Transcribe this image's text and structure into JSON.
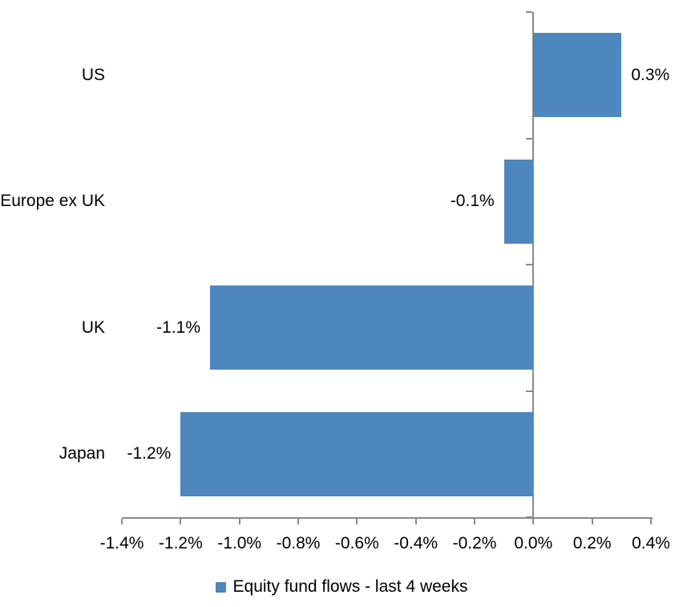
{
  "chart_data": {
    "type": "bar",
    "orientation": "horizontal",
    "title": "",
    "xlabel": "",
    "ylabel": "",
    "categories": [
      "US",
      "Europe ex UK",
      "UK",
      "Japan"
    ],
    "series": [
      {
        "name": "Equity fund flows - last 4 weeks",
        "values": [
          0.3,
          -0.1,
          -1.1,
          -1.2
        ],
        "data_labels": [
          "0.3%",
          "-0.1%",
          "-1.1%",
          "-1.2%"
        ]
      }
    ],
    "value_unit": "%",
    "xlim": [
      -1.4,
      0.4
    ],
    "x_ticks": [
      {
        "value": -1.4,
        "label": "-1.4%"
      },
      {
        "value": -1.2,
        "label": "-1.2%"
      },
      {
        "value": -1.0,
        "label": "-1.0%"
      },
      {
        "value": -0.8,
        "label": "-0.8%"
      },
      {
        "value": -0.6,
        "label": "-0.6%"
      },
      {
        "value": -0.4,
        "label": "-0.4%"
      },
      {
        "value": -0.2,
        "label": "-0.2%"
      },
      {
        "value": 0.0,
        "label": "0.0%"
      },
      {
        "value": 0.2,
        "label": "0.2%"
      },
      {
        "value": 0.4,
        "label": "0.4%"
      }
    ],
    "grid": false,
    "legend": {
      "position": "bottom",
      "entries": [
        "Equity fund flows - last 4 weeks"
      ]
    },
    "colors": {
      "bar": "#4E86BE",
      "axis": "#8A8A8A",
      "text": "#000000",
      "background": "#FFFFFF"
    }
  }
}
